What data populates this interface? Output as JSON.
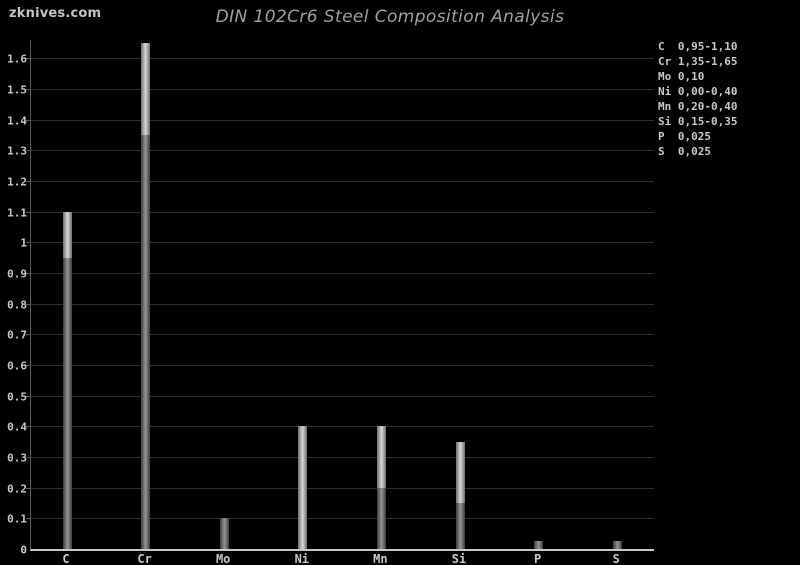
{
  "watermark": "zknives.com",
  "colors": {
    "background": "#000000",
    "title_text": "#a0a0a0",
    "watermark_text": "#c4c4c4",
    "tick_text": "#c8c8c8",
    "gridline": "#2e2e2e",
    "y_axis_line": "#5a5a5a",
    "x_axis_line": "#c8c8c8",
    "bar_base_edge": "#3c3c3c",
    "bar_base_center": "#969696",
    "bar_range_edge": "#6e6e6e",
    "bar_range_center": "#d8d8d8"
  },
  "chart_data": {
    "type": "bar",
    "title": "DIN 102Cr6 Steel Composition Analysis",
    "xlabel": "",
    "ylabel": "",
    "ylim": [
      0,
      1.66
    ],
    "grid": true,
    "legend_position": "top-right",
    "categories": [
      "C",
      "Cr",
      "Mo",
      "Ni",
      "Mn",
      "Si",
      "P",
      "S"
    ],
    "bars": [
      {
        "element": "C",
        "value_max": 1.1,
        "range_min": 0.95,
        "range_max": 1.1
      },
      {
        "element": "Cr",
        "value_max": 1.65,
        "range_min": 1.35,
        "range_max": 1.65
      },
      {
        "element": "Mo",
        "value_max": 0.1,
        "range_min": null,
        "range_max": null
      },
      {
        "element": "Ni",
        "value_max": 0.4,
        "range_min": 0.0,
        "range_max": 0.4
      },
      {
        "element": "Mn",
        "value_max": 0.4,
        "range_min": 0.2,
        "range_max": 0.4
      },
      {
        "element": "Si",
        "value_max": 0.35,
        "range_min": 0.15,
        "range_max": 0.35
      },
      {
        "element": "P",
        "value_max": 0.025,
        "range_min": null,
        "range_max": null
      },
      {
        "element": "S",
        "value_max": 0.025,
        "range_min": null,
        "range_max": null
      }
    ],
    "legend_entries": [
      "C  0,95-1,10",
      "Cr 1,35-1,65",
      "Mo 0,10",
      "Ni 0,00-0,40",
      "Mn 0,20-0,40",
      "Si 0,15-0,35",
      "P  0,025",
      "S  0,025"
    ],
    "y_tick_labels": [
      "0",
      "0.1",
      "0.2",
      "0.3",
      "0.4",
      "0.5",
      "0.6",
      "0.7",
      "0.8",
      "0.9",
      "1",
      "1.1",
      "1.2",
      "1.3",
      "1.4",
      "1.5",
      "1.6"
    ],
    "y_tick_step": 0.1
  }
}
